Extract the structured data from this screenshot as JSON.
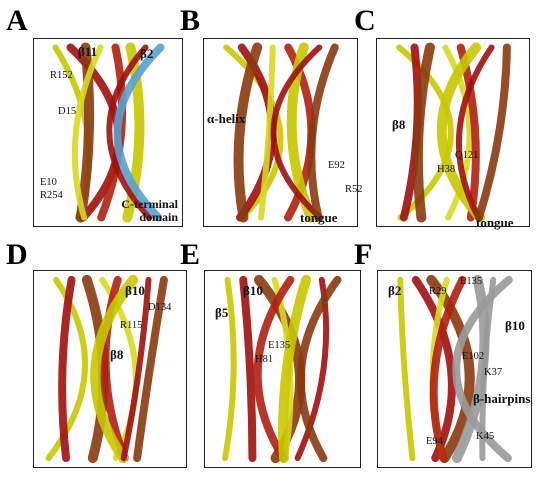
{
  "panels": [
    {
      "letter": "A",
      "labels": [
        "β11",
        "β2",
        "R152",
        "D15",
        "E10",
        "R254",
        "C-terminal domain"
      ]
    },
    {
      "letter": "B",
      "labels": [
        "α-helix",
        "E92",
        "R52",
        "tongue"
      ]
    },
    {
      "letter": "C",
      "labels": [
        "β8",
        "Q121",
        "H38",
        "tongue"
      ]
    },
    {
      "letter": "D",
      "labels": [
        "β10",
        "D134",
        "R115",
        "β8"
      ]
    },
    {
      "letter": "E",
      "labels": [
        "β10",
        "β5",
        "E135",
        "H81"
      ]
    },
    {
      "letter": "F",
      "labels": [
        "β2",
        "R29",
        "E135",
        "β10",
        "E102",
        "K37",
        "β-hairpins",
        "E94",
        "K45"
      ]
    }
  ]
}
